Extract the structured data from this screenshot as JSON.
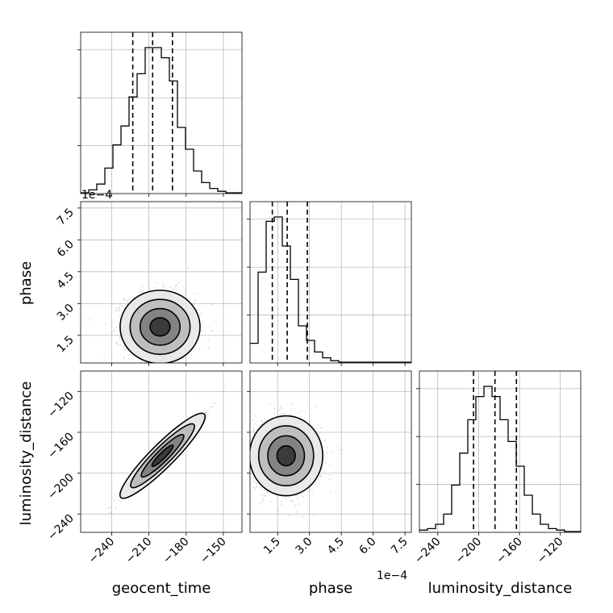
{
  "chart_data": {
    "type": "corner",
    "parameters": [
      "geocent_time",
      "phase",
      "luminosity_distance"
    ],
    "axis_labels": {
      "geocent_time": "geocent_time",
      "phase": "phase",
      "luminosity_distance": "luminosity_distance"
    },
    "offset_text": "1e−4",
    "ranges": {
      "geocent_time": [
        -265,
        -135
      ],
      "phase": [
        0.2,
        7.8
      ],
      "luminosity_distance": [
        -258,
        -100
      ]
    },
    "ticks": {
      "geocent_time": {
        "values": [
          -240,
          -210,
          -180,
          -150
        ],
        "labels": [
          "−240",
          "−210",
          "−180",
          "−150"
        ]
      },
      "phase": {
        "values": [
          1.5,
          3.0,
          4.5,
          6.0,
          7.5
        ],
        "labels": [
          "1.5",
          "3.0",
          "4.5",
          "6.0",
          "7.5"
        ]
      },
      "luminosity_distance_y": {
        "values": [
          -240,
          -200,
          -160,
          -120
        ],
        "labels": [
          "−240",
          "−200",
          "−160",
          "−120"
        ]
      },
      "luminosity_distance_x": {
        "values": [
          -240,
          -200,
          -160,
          -120
        ],
        "labels": [
          "−240",
          "−200",
          "−160",
          "−120"
        ]
      }
    },
    "quantile_lines": {
      "geocent_time": [
        -223,
        -207,
        -191
      ],
      "phase": [
        1.25,
        1.95,
        2.9
      ],
      "luminosity_distance": [
        -205,
        -184,
        -163
      ]
    },
    "histograms": {
      "geocent_time": {
        "edges": [
          -265,
          -258.5,
          -252,
          -245.5,
          -239,
          -232.5,
          -226,
          -219.5,
          -213,
          -206.5,
          -200,
          -193.5,
          -187,
          -180.5,
          -174,
          -167.5,
          -161,
          -154.5,
          -148,
          -141.5,
          -135
        ],
        "counts": [
          0,
          2,
          6,
          17,
          33,
          46,
          66,
          82,
          100,
          100,
          93,
          77,
          45,
          30,
          15,
          7,
          3,
          1,
          0,
          0
        ]
      },
      "phase": {
        "edges": [
          0.2,
          0.58,
          0.96,
          1.34,
          1.72,
          2.1,
          2.48,
          2.86,
          3.24,
          3.62,
          4.0,
          4.38,
          4.76,
          5.14,
          5.52,
          5.9,
          6.28,
          6.66,
          7.04,
          7.42,
          7.8
        ],
        "counts": [
          13,
          62,
          97,
          100,
          80,
          57,
          25,
          15,
          7,
          3,
          1,
          0,
          0,
          0,
          0,
          0,
          0,
          0,
          0,
          0
        ]
      },
      "luminosity_distance": {
        "edges": [
          -258,
          -250.1,
          -242.2,
          -234.3,
          -226.4,
          -218.5,
          -210.6,
          -202.7,
          -194.8,
          -186.9,
          -179,
          -171.1,
          -163.2,
          -155.3,
          -147.4,
          -139.5,
          -131.6,
          -123.7,
          -115.8,
          -107.9,
          -100
        ],
        "counts": [
          1,
          2,
          5,
          12,
          32,
          54,
          77,
          93,
          100,
          93,
          77,
          62,
          45,
          25,
          12,
          5,
          2,
          1,
          0,
          0
        ]
      }
    },
    "scatter_pairs": [
      {
        "x": "geocent_time",
        "y": "phase",
        "center": [
          -201,
          1.9
        ],
        "spread": [
          14,
          0.75
        ],
        "correlation": 0
      },
      {
        "x": "geocent_time",
        "y": "luminosity_distance",
        "center": [
          -199,
          -183
        ],
        "spread": [
          14,
          17
        ],
        "correlation": 0.98
      },
      {
        "x": "phase",
        "y": "luminosity_distance",
        "center": [
          1.9,
          -183
        ],
        "spread": [
          0.75,
          17
        ],
        "correlation": 0
      }
    ],
    "contour_levels": [
      0.5,
      1.0,
      1.5,
      2.0
    ],
    "grid": true,
    "colors": {
      "line": "#000000",
      "grid": "#b0b0b0",
      "points": "#555555"
    }
  }
}
